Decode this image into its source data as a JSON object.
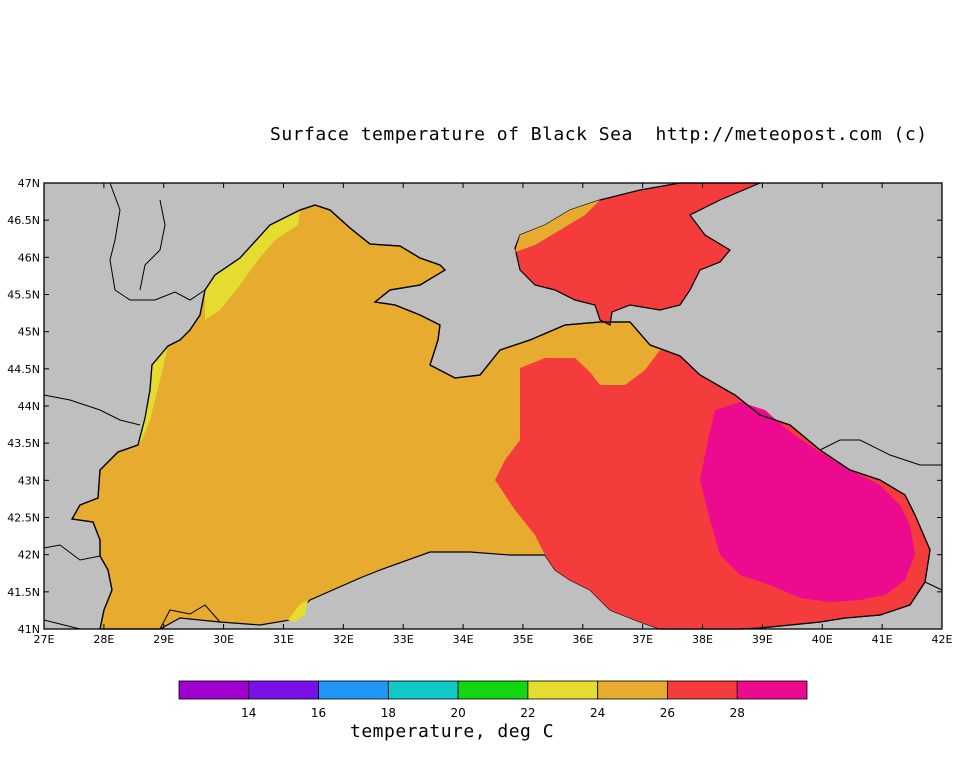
{
  "title": "Surface temperature of Black Sea  http://meteopost.com (c)",
  "colorbar_title": "temperature, deg C",
  "colors": {
    "land": "#bfbfbf",
    "t22_24": "#e5dc30",
    "t24_26": "#e6ab2f",
    "t26_28": "#f53c3d",
    "t28_30": "#ec0a8e"
  },
  "map": {
    "lon_ticks": [
      "27E",
      "28E",
      "29E",
      "30E",
      "31E",
      "32E",
      "33E",
      "34E",
      "35E",
      "36E",
      "37E",
      "38E",
      "39E",
      "40E",
      "41E",
      "42E"
    ],
    "lat_ticks": [
      "47N",
      "46.5N",
      "46N",
      "45.5N",
      "45N",
      "44.5N",
      "44N",
      "43.5N",
      "43N",
      "42.5N",
      "42N",
      "41.5N",
      "41N"
    ]
  },
  "colorbar": {
    "colors": [
      "#a000d0",
      "#7a10e8",
      "#1f98f5",
      "#10c8c8",
      "#12d612",
      "#e5dc30",
      "#e6ab2f",
      "#f53c3d",
      "#ec0a8e"
    ],
    "labels": [
      "14",
      "16",
      "18",
      "20",
      "22",
      "24",
      "26",
      "28"
    ]
  }
}
